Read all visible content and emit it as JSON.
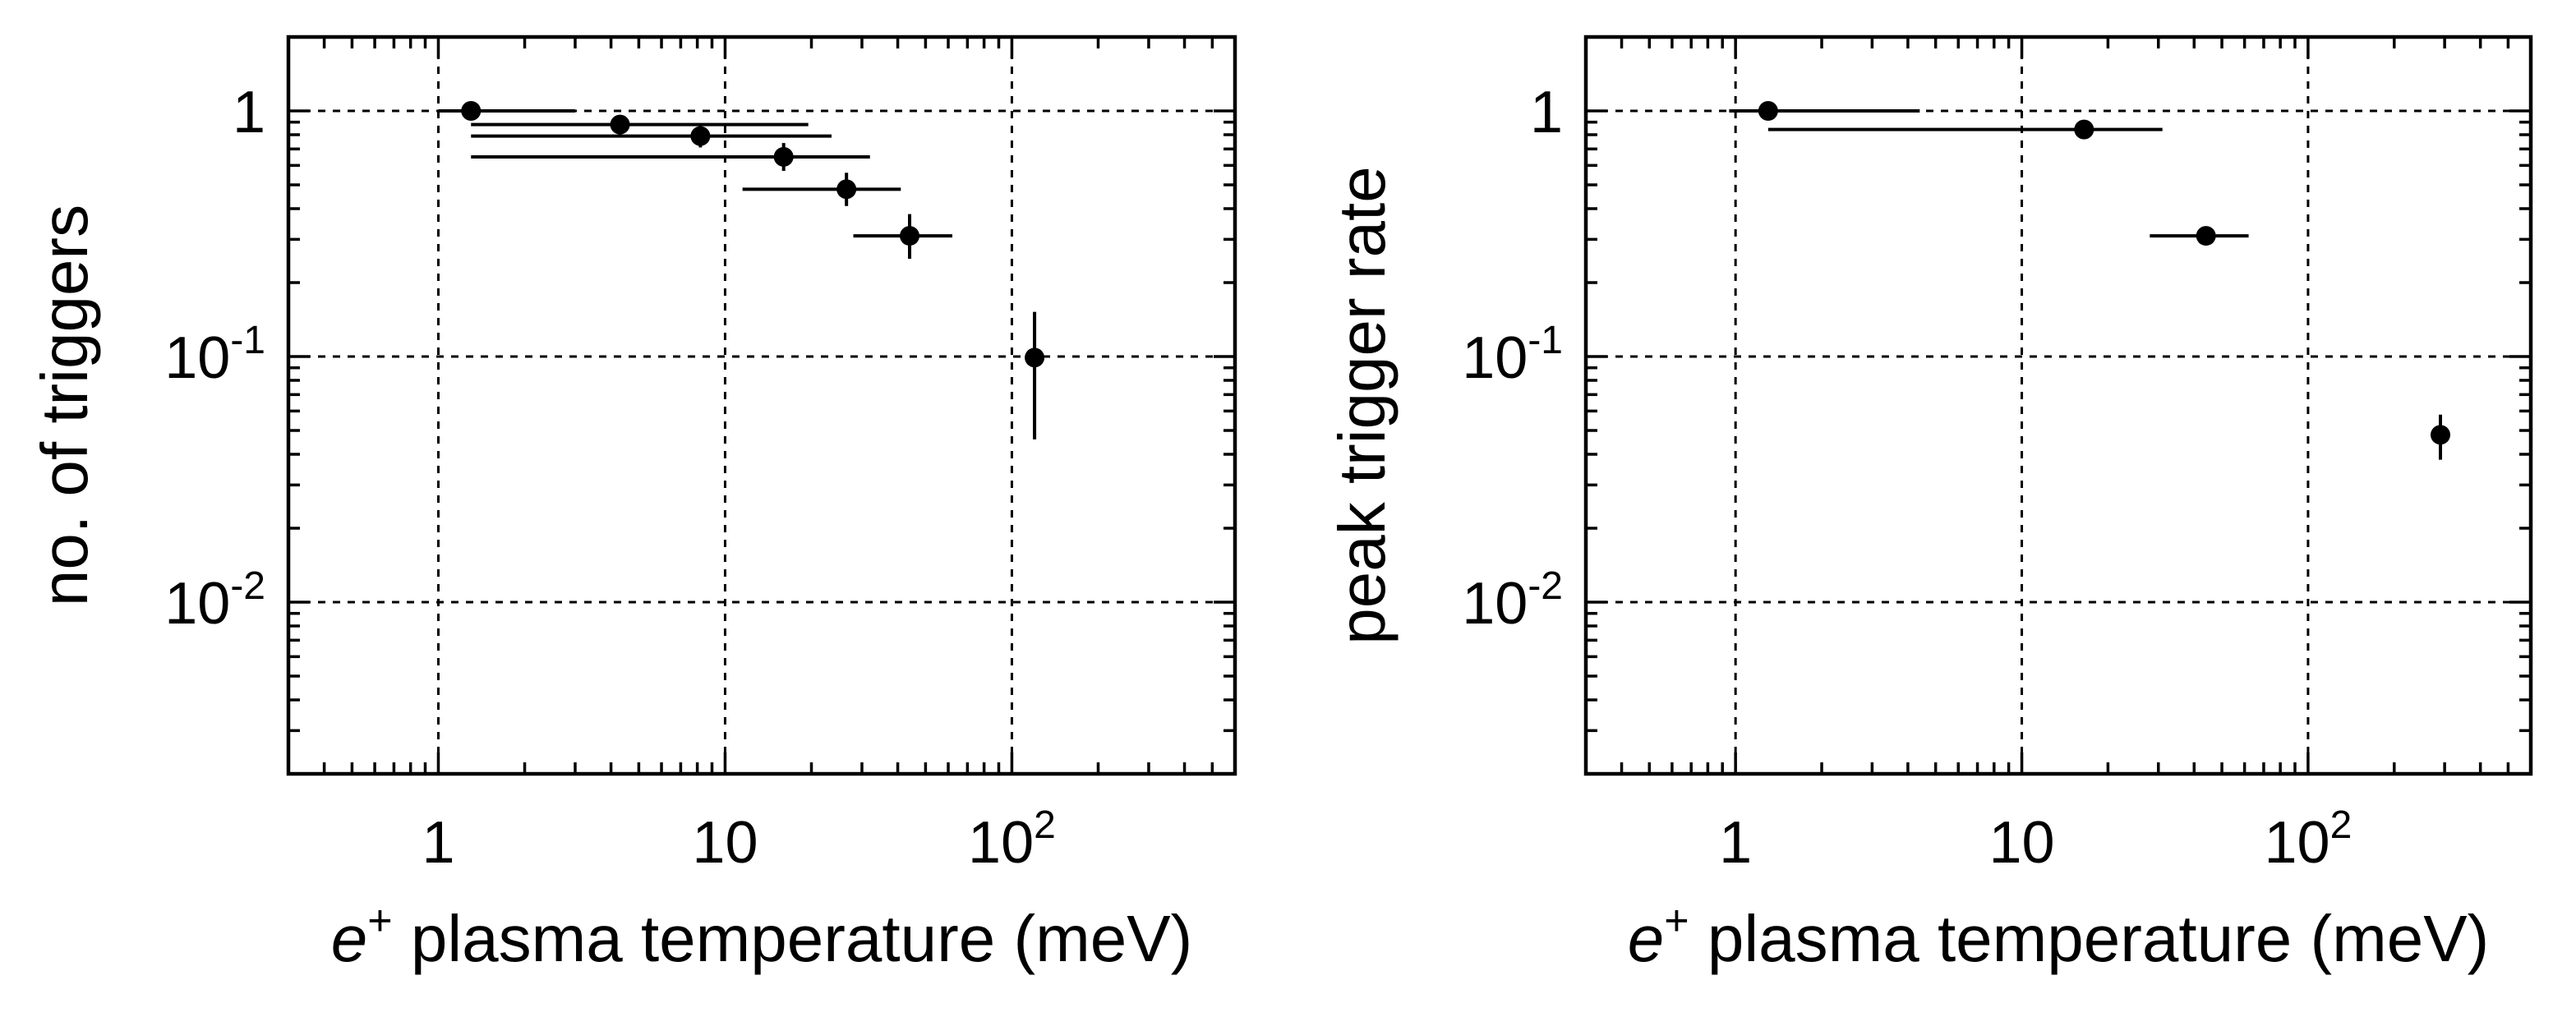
{
  "chart_data": [
    {
      "type": "scatter",
      "title": "",
      "xlabel_italic": "e",
      "xlabel_sup": "+",
      "xlabel_rest": " plasma temperature  (meV)",
      "ylabel": "no. of triggers",
      "xscale": "log",
      "yscale": "log",
      "xlim": [
        0.3,
        600
      ],
      "ylim": [
        0.002,
        2
      ],
      "grid": true,
      "x_ticks": [
        {
          "value": 1,
          "base": "1",
          "exp": ""
        },
        {
          "value": 10,
          "base": "10",
          "exp": ""
        },
        {
          "value": 100,
          "base": "10",
          "exp": "2"
        }
      ],
      "y_ticks": [
        {
          "value": 1,
          "base": "1",
          "exp": ""
        },
        {
          "value": 0.1,
          "base": "10",
          "exp": "-1"
        },
        {
          "value": 0.01,
          "base": "10",
          "exp": "-2"
        }
      ],
      "points": [
        {
          "x": 1.3,
          "y": 1.0,
          "xmin": 1.0,
          "xmax": 3.0,
          "ymin": 0.92,
          "ymax": 1.08
        },
        {
          "x": 4.3,
          "y": 0.88,
          "xmin": 1.3,
          "xmax": 19.5,
          "ymin": 0.8,
          "ymax": 0.96
        },
        {
          "x": 8.2,
          "y": 0.79,
          "xmin": 1.3,
          "xmax": 23.5,
          "ymin": 0.71,
          "ymax": 0.87
        },
        {
          "x": 16.0,
          "y": 0.65,
          "xmin": 1.3,
          "xmax": 32.0,
          "ymin": 0.57,
          "ymax": 0.74
        },
        {
          "x": 26.5,
          "y": 0.48,
          "xmin": 11.5,
          "xmax": 41.0,
          "ymin": 0.41,
          "ymax": 0.56
        },
        {
          "x": 44.0,
          "y": 0.31,
          "xmin": 28.0,
          "xmax": 62.0,
          "ymin": 0.25,
          "ymax": 0.38
        },
        {
          "x": 120.0,
          "y": 0.099,
          "xmin": 120.0,
          "xmax": 120.0,
          "ymin": 0.046,
          "ymax": 0.152
        }
      ]
    },
    {
      "type": "scatter",
      "title": "",
      "xlabel_italic": "e",
      "xlabel_sup": "+",
      "xlabel_rest": " plasma temperature  (meV)",
      "ylabel": "peak trigger rate",
      "xscale": "log",
      "yscale": "log",
      "xlim": [
        0.3,
        600
      ],
      "ylim": [
        0.002,
        2
      ],
      "grid": true,
      "x_ticks": [
        {
          "value": 1,
          "base": "1",
          "exp": ""
        },
        {
          "value": 10,
          "base": "10",
          "exp": ""
        },
        {
          "value": 100,
          "base": "10",
          "exp": "2"
        }
      ],
      "y_ticks": [
        {
          "value": 1,
          "base": "1",
          "exp": ""
        },
        {
          "value": 0.1,
          "base": "10",
          "exp": "-1"
        },
        {
          "value": 0.01,
          "base": "10",
          "exp": "-2"
        }
      ],
      "points": [
        {
          "x": 1.3,
          "y": 1.0,
          "xmin": 0.95,
          "xmax": 4.4,
          "ymin": 0.95,
          "ymax": 1.05
        },
        {
          "x": 16.5,
          "y": 0.84,
          "xmin": 1.3,
          "xmax": 31.0,
          "ymin": 0.79,
          "ymax": 0.89
        },
        {
          "x": 44.0,
          "y": 0.31,
          "xmin": 28.0,
          "xmax": 62.0,
          "ymin": 0.29,
          "ymax": 0.33
        },
        {
          "x": 290.0,
          "y": 0.048,
          "xmin": 290.0,
          "xmax": 290.0,
          "ymin": 0.038,
          "ymax": 0.058
        }
      ]
    }
  ]
}
